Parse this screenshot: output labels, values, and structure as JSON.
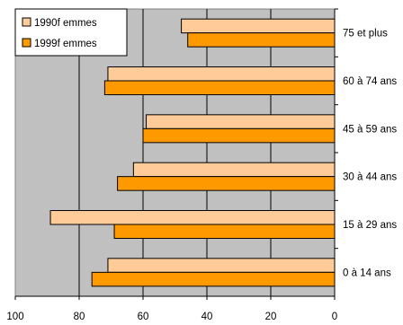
{
  "chart_data": {
    "type": "bar",
    "orientation": "horizontal",
    "categories": [
      "0 à 14 ans",
      "15 à 29 ans",
      "30 à 44 ans",
      "45 à 59 ans",
      "60 à 74 ans",
      "75 et plus"
    ],
    "series": [
      {
        "name": "1990f emmes",
        "values": [
          71,
          89,
          63,
          59,
          71,
          48
        ],
        "color": "#FFCC99"
      },
      {
        "name": "1999f emmes",
        "values": [
          76,
          69,
          68,
          60,
          72,
          46
        ],
        "color": "#FF9900"
      }
    ],
    "xlim": [
      0,
      100
    ],
    "x_reversed": true,
    "x_ticks": [
      "100",
      "80",
      "60",
      "40",
      "20",
      "0"
    ],
    "grid": true,
    "legend_position": "top-left",
    "plot_background": "#C0C0C0",
    "title": "",
    "xlabel": "",
    "ylabel": ""
  }
}
